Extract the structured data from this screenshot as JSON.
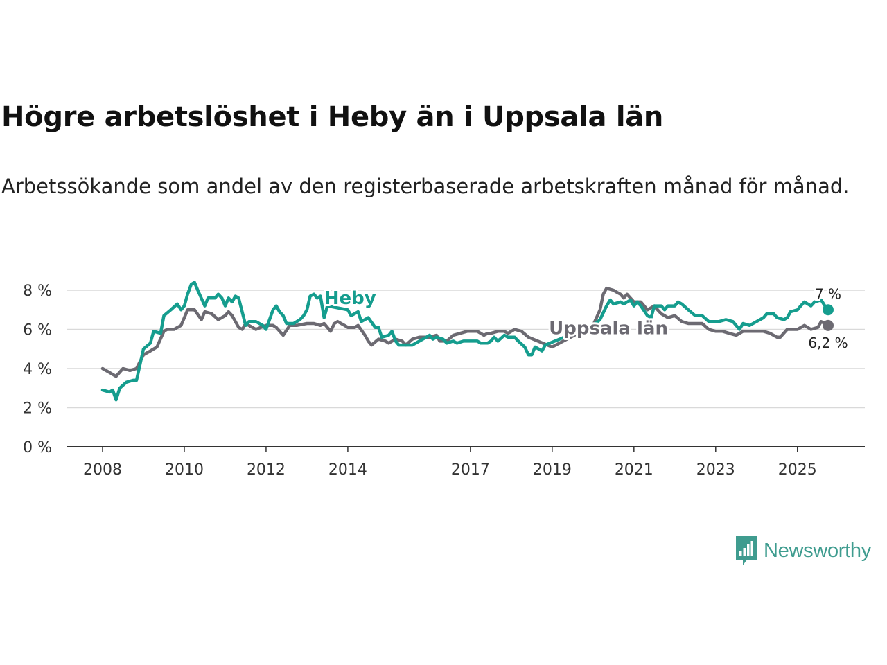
{
  "header": {
    "title": "Högre arbetslöshet i Heby än i Uppsala län",
    "subtitle": "Arbetssökande som andel av den registerbaserade arbetskraften månad för månad."
  },
  "brand": {
    "name": "Newsworthy",
    "color": "#3f9c8f"
  },
  "colors": {
    "heby": "#159d8e",
    "uppsala": "#6c6a72",
    "grid": "#d9d9d9",
    "axis": "#333333"
  },
  "chart_data": {
    "type": "line",
    "title": "Högre arbetslöshet i Heby än i Uppsala län",
    "xlabel": "",
    "ylabel": "",
    "ylim": [
      0,
      8
    ],
    "xlim": [
      2007.6,
      2025.9
    ],
    "yticks": [
      {
        "value": 0,
        "label": "0 %"
      },
      {
        "value": 2,
        "label": "2 %"
      },
      {
        "value": 4,
        "label": "4 %"
      },
      {
        "value": 6,
        "label": "6 %"
      },
      {
        "value": 8,
        "label": "8 %"
      }
    ],
    "xticks": [
      {
        "value": 2008,
        "label": "2008"
      },
      {
        "value": 2010,
        "label": "2010"
      },
      {
        "value": 2012,
        "label": "2012"
      },
      {
        "value": 2014,
        "label": "2014"
      },
      {
        "value": 2017,
        "label": "2017"
      },
      {
        "value": 2019,
        "label": "2019"
      },
      {
        "value": 2021,
        "label": "2021"
      },
      {
        "value": 2023,
        "label": "2023"
      },
      {
        "value": 2025,
        "label": "2025"
      }
    ],
    "series": [
      {
        "name": "Heby",
        "end_label": "7 %",
        "points": [
          [
            2008.0,
            2.9
          ],
          [
            2008.17,
            2.8
          ],
          [
            2008.25,
            2.9
          ],
          [
            2008.33,
            2.4
          ],
          [
            2008.42,
            3.0
          ],
          [
            2008.58,
            3.3
          ],
          [
            2008.75,
            3.4
          ],
          [
            2008.83,
            3.4
          ],
          [
            2009.0,
            5.0
          ],
          [
            2009.17,
            5.3
          ],
          [
            2009.25,
            5.9
          ],
          [
            2009.42,
            5.8
          ],
          [
            2009.5,
            6.7
          ],
          [
            2009.67,
            7.0
          ],
          [
            2009.83,
            7.3
          ],
          [
            2009.92,
            7.0
          ],
          [
            2010.0,
            7.2
          ],
          [
            2010.08,
            7.8
          ],
          [
            2010.17,
            8.3
          ],
          [
            2010.25,
            8.4
          ],
          [
            2010.33,
            8.0
          ],
          [
            2010.5,
            7.2
          ],
          [
            2010.58,
            7.6
          ],
          [
            2010.75,
            7.6
          ],
          [
            2010.83,
            7.8
          ],
          [
            2010.92,
            7.6
          ],
          [
            2011.0,
            7.2
          ],
          [
            2011.08,
            7.6
          ],
          [
            2011.17,
            7.4
          ],
          [
            2011.25,
            7.7
          ],
          [
            2011.33,
            7.6
          ],
          [
            2011.5,
            6.2
          ],
          [
            2011.58,
            6.4
          ],
          [
            2011.75,
            6.4
          ],
          [
            2011.92,
            6.2
          ],
          [
            2012.0,
            6.0
          ],
          [
            2012.17,
            7.0
          ],
          [
            2012.25,
            7.2
          ],
          [
            2012.33,
            6.9
          ],
          [
            2012.42,
            6.7
          ],
          [
            2012.5,
            6.3
          ],
          [
            2012.67,
            6.3
          ],
          [
            2012.83,
            6.5
          ],
          [
            2012.92,
            6.7
          ],
          [
            2013.0,
            7.0
          ],
          [
            2013.08,
            7.7
          ],
          [
            2013.17,
            7.8
          ],
          [
            2013.25,
            7.6
          ],
          [
            2013.33,
            7.7
          ],
          [
            2013.42,
            6.6
          ],
          [
            2013.5,
            7.2
          ],
          [
            2014.0,
            7.0
          ],
          [
            2014.08,
            6.7
          ],
          [
            2014.25,
            6.9
          ],
          [
            2014.33,
            6.4
          ],
          [
            2014.5,
            6.6
          ],
          [
            2014.67,
            6.1
          ],
          [
            2014.75,
            6.1
          ],
          [
            2014.83,
            5.6
          ],
          [
            2015.0,
            5.7
          ],
          [
            2015.08,
            5.9
          ],
          [
            2015.17,
            5.4
          ],
          [
            2015.25,
            5.2
          ],
          [
            2015.42,
            5.2
          ],
          [
            2015.58,
            5.2
          ],
          [
            2015.75,
            5.4
          ],
          [
            2015.92,
            5.6
          ],
          [
            2016.0,
            5.7
          ],
          [
            2016.08,
            5.5
          ],
          [
            2016.17,
            5.6
          ],
          [
            2016.33,
            5.5
          ],
          [
            2016.42,
            5.3
          ],
          [
            2016.58,
            5.4
          ],
          [
            2016.67,
            5.3
          ],
          [
            2016.83,
            5.4
          ],
          [
            2017.0,
            5.4
          ],
          [
            2017.17,
            5.4
          ],
          [
            2017.25,
            5.3
          ],
          [
            2017.42,
            5.3
          ],
          [
            2017.5,
            5.4
          ],
          [
            2017.58,
            5.6
          ],
          [
            2017.67,
            5.4
          ],
          [
            2017.83,
            5.7
          ],
          [
            2017.92,
            5.6
          ],
          [
            2018.08,
            5.6
          ],
          [
            2018.17,
            5.4
          ],
          [
            2018.33,
            5.1
          ],
          [
            2018.42,
            4.7
          ],
          [
            2018.5,
            4.7
          ],
          [
            2018.58,
            5.1
          ],
          [
            2018.67,
            5.0
          ],
          [
            2018.75,
            4.9
          ],
          [
            2018.83,
            5.2
          ],
          [
            2020.0,
            6.2
          ],
          [
            2020.17,
            6.5
          ],
          [
            2020.33,
            7.2
          ],
          [
            2020.42,
            7.5
          ],
          [
            2020.5,
            7.3
          ],
          [
            2020.67,
            7.4
          ],
          [
            2020.75,
            7.3
          ],
          [
            2020.92,
            7.5
          ],
          [
            2021.0,
            7.2
          ],
          [
            2021.08,
            7.4
          ],
          [
            2021.17,
            7.2
          ],
          [
            2021.33,
            6.7
          ],
          [
            2021.42,
            6.6
          ],
          [
            2021.5,
            7.2
          ],
          [
            2021.67,
            7.2
          ],
          [
            2021.75,
            7.0
          ],
          [
            2021.83,
            7.2
          ],
          [
            2022.0,
            7.2
          ],
          [
            2022.08,
            7.4
          ],
          [
            2022.17,
            7.3
          ],
          [
            2022.33,
            7.0
          ],
          [
            2022.5,
            6.7
          ],
          [
            2022.67,
            6.7
          ],
          [
            2022.83,
            6.4
          ],
          [
            2023.0,
            6.4
          ],
          [
            2023.08,
            6.4
          ],
          [
            2023.25,
            6.5
          ],
          [
            2023.42,
            6.4
          ],
          [
            2023.5,
            6.2
          ],
          [
            2023.58,
            6.0
          ],
          [
            2023.67,
            6.3
          ],
          [
            2023.83,
            6.2
          ],
          [
            2024.0,
            6.4
          ],
          [
            2024.17,
            6.6
          ],
          [
            2024.25,
            6.8
          ],
          [
            2024.42,
            6.8
          ],
          [
            2024.5,
            6.6
          ],
          [
            2024.67,
            6.5
          ],
          [
            2024.75,
            6.6
          ],
          [
            2024.83,
            6.9
          ],
          [
            2025.0,
            7.0
          ],
          [
            2025.08,
            7.2
          ],
          [
            2025.17,
            7.4
          ],
          [
            2025.33,
            7.2
          ],
          [
            2025.42,
            7.4
          ],
          [
            2025.58,
            7.5
          ],
          [
            2025.67,
            7.2
          ],
          [
            2025.75,
            7.0
          ]
        ]
      },
      {
        "name": "Uppsala län",
        "end_label": "6,2 %",
        "points": [
          [
            2008.0,
            4.0
          ],
          [
            2008.17,
            3.8
          ],
          [
            2008.33,
            3.6
          ],
          [
            2008.5,
            4.0
          ],
          [
            2008.67,
            3.9
          ],
          [
            2008.83,
            4.0
          ],
          [
            2009.0,
            4.7
          ],
          [
            2009.17,
            4.9
          ],
          [
            2009.33,
            5.1
          ],
          [
            2009.5,
            5.9
          ],
          [
            2009.58,
            6.0
          ],
          [
            2009.75,
            6.0
          ],
          [
            2009.92,
            6.2
          ],
          [
            2010.0,
            6.6
          ],
          [
            2010.08,
            7.0
          ],
          [
            2010.25,
            7.0
          ],
          [
            2010.42,
            6.5
          ],
          [
            2010.5,
            6.9
          ],
          [
            2010.67,
            6.8
          ],
          [
            2010.83,
            6.5
          ],
          [
            2011.0,
            6.7
          ],
          [
            2011.08,
            6.9
          ],
          [
            2011.17,
            6.7
          ],
          [
            2011.33,
            6.1
          ],
          [
            2011.42,
            6.0
          ],
          [
            2011.5,
            6.3
          ],
          [
            2011.58,
            6.2
          ],
          [
            2011.75,
            6.0
          ],
          [
            2012.0,
            6.2
          ],
          [
            2012.17,
            6.2
          ],
          [
            2012.25,
            6.1
          ],
          [
            2012.42,
            5.7
          ],
          [
            2012.58,
            6.2
          ],
          [
            2012.75,
            6.2
          ],
          [
            2013.0,
            6.3
          ],
          [
            2013.17,
            6.3
          ],
          [
            2013.33,
            6.2
          ],
          [
            2013.42,
            6.3
          ],
          [
            2013.58,
            5.9
          ],
          [
            2013.67,
            6.3
          ],
          [
            2013.75,
            6.4
          ],
          [
            2013.92,
            6.2
          ],
          [
            2014.0,
            6.1
          ],
          [
            2014.17,
            6.1
          ],
          [
            2014.25,
            6.2
          ],
          [
            2014.42,
            5.7
          ],
          [
            2014.5,
            5.4
          ],
          [
            2014.58,
            5.2
          ],
          [
            2014.75,
            5.5
          ],
          [
            2014.92,
            5.4
          ],
          [
            2015.0,
            5.3
          ],
          [
            2015.17,
            5.5
          ],
          [
            2015.33,
            5.4
          ],
          [
            2015.42,
            5.2
          ],
          [
            2015.58,
            5.5
          ],
          [
            2015.75,
            5.6
          ],
          [
            2016.0,
            5.6
          ],
          [
            2016.17,
            5.7
          ],
          [
            2016.25,
            5.4
          ],
          [
            2016.42,
            5.4
          ],
          [
            2016.58,
            5.7
          ],
          [
            2016.75,
            5.8
          ],
          [
            2016.92,
            5.9
          ],
          [
            2017.0,
            5.9
          ],
          [
            2017.17,
            5.9
          ],
          [
            2017.33,
            5.7
          ],
          [
            2017.42,
            5.8
          ],
          [
            2017.5,
            5.8
          ],
          [
            2017.67,
            5.9
          ],
          [
            2017.83,
            5.9
          ],
          [
            2017.92,
            5.8
          ],
          [
            2018.0,
            5.9
          ],
          [
            2018.08,
            6.0
          ],
          [
            2018.25,
            5.9
          ],
          [
            2018.42,
            5.6
          ],
          [
            2019.0,
            5.1
          ],
          [
            2020.0,
            6.2
          ],
          [
            2020.17,
            7.0
          ],
          [
            2020.25,
            7.8
          ],
          [
            2020.33,
            8.1
          ],
          [
            2020.5,
            8.0
          ],
          [
            2020.58,
            7.9
          ],
          [
            2020.67,
            7.8
          ],
          [
            2020.75,
            7.6
          ],
          [
            2020.83,
            7.8
          ],
          [
            2021.0,
            7.4
          ],
          [
            2021.17,
            7.4
          ],
          [
            2021.33,
            7.0
          ],
          [
            2021.5,
            7.2
          ],
          [
            2021.58,
            7.0
          ],
          [
            2021.67,
            6.8
          ],
          [
            2021.83,
            6.6
          ],
          [
            2022.0,
            6.7
          ],
          [
            2022.17,
            6.4
          ],
          [
            2022.33,
            6.3
          ],
          [
            2022.5,
            6.3
          ],
          [
            2022.67,
            6.3
          ],
          [
            2022.83,
            6.0
          ],
          [
            2023.0,
            5.9
          ],
          [
            2023.17,
            5.9
          ],
          [
            2023.33,
            5.8
          ],
          [
            2023.5,
            5.7
          ],
          [
            2023.67,
            5.9
          ],
          [
            2023.83,
            5.9
          ],
          [
            2024.0,
            5.9
          ],
          [
            2024.17,
            5.9
          ],
          [
            2024.33,
            5.8
          ],
          [
            2024.5,
            5.6
          ],
          [
            2024.58,
            5.6
          ],
          [
            2024.75,
            6.0
          ],
          [
            2024.92,
            6.0
          ],
          [
            2025.0,
            6.0
          ],
          [
            2025.17,
            6.2
          ],
          [
            2025.33,
            6.0
          ],
          [
            2025.5,
            6.1
          ],
          [
            2025.58,
            6.4
          ],
          [
            2025.67,
            6.3
          ],
          [
            2025.75,
            6.2
          ]
        ]
      }
    ]
  }
}
